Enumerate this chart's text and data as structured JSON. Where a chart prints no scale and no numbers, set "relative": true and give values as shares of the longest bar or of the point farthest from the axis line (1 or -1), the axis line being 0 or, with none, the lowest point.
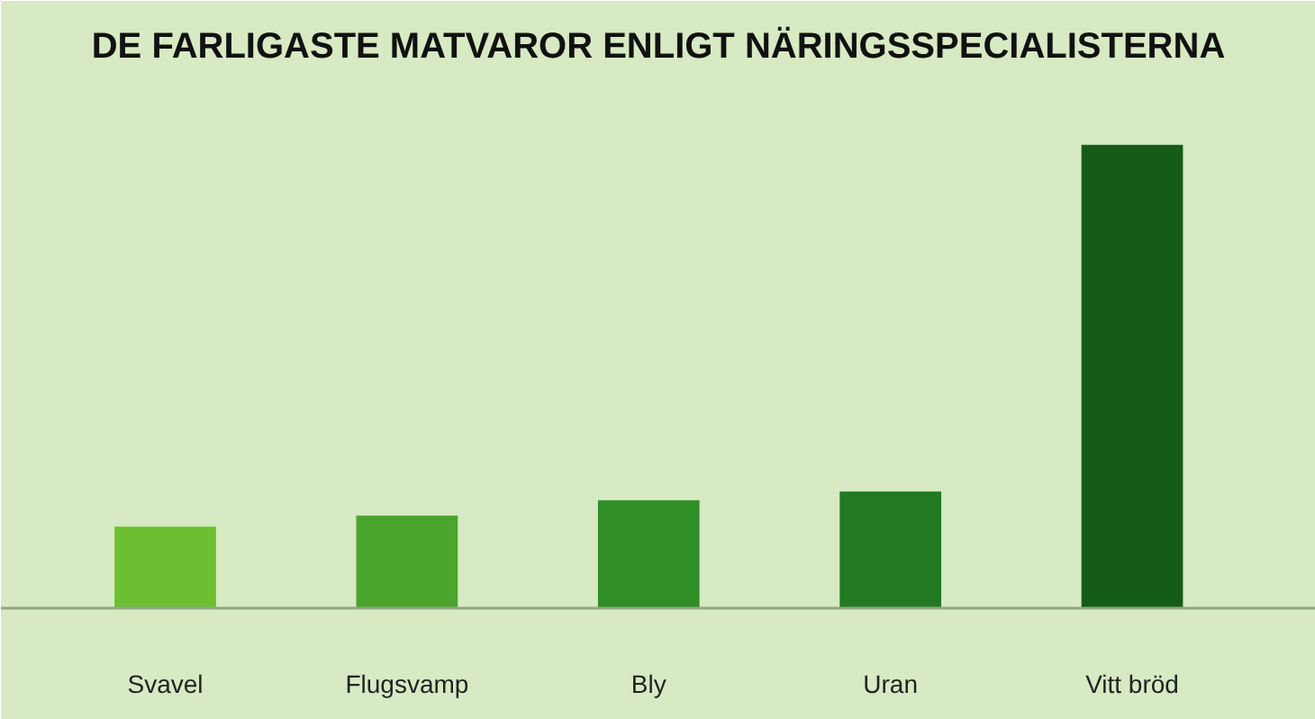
{
  "chart_data": {
    "type": "bar",
    "title": "DE FARLIGASTE MATVAROR ENLIGT NÄRINGSSPECIALISTERNA",
    "categories": [
      "Svavel",
      "Flugsvamp",
      "Bly",
      "Uran",
      "Vitt bröd"
    ],
    "values": [
      0.176,
      0.2,
      0.233,
      0.252,
      1
    ],
    "colors": [
      "#6dbf32",
      "#4aa52c",
      "#2f8e26",
      "#217a22",
      "#155c18"
    ],
    "relative": true,
    "grid": false
  }
}
